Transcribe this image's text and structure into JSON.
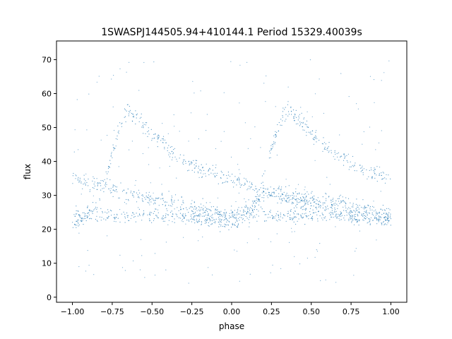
{
  "chart_data": {
    "type": "scatter",
    "title": "1SWASPJ144505.94+410144.1 Period 15329.40039s",
    "xlabel": "phase",
    "ylabel": "flux",
    "xlim": [
      -1.1,
      1.1
    ],
    "ylim": [
      -1.5,
      75.5
    ],
    "xticks": [
      -1.0,
      -0.75,
      -0.5,
      -0.25,
      0.0,
      0.25,
      0.5,
      0.75,
      1.0
    ],
    "xtick_labels": [
      "−1.00",
      "−0.75",
      "−0.50",
      "−0.25",
      "0.00",
      "0.25",
      "0.50",
      "0.75",
      "1.00"
    ],
    "yticks": [
      0,
      10,
      20,
      30,
      40,
      50,
      60,
      70
    ],
    "ytick_labels": [
      "0",
      "10",
      "20",
      "30",
      "40",
      "50",
      "60",
      "70"
    ],
    "grid": false,
    "legend": "none",
    "point_color": "#1f77b4",
    "series": [
      {
        "shape": "rising-branch",
        "x": [
          -1.0,
          -0.9,
          -0.85,
          -0.8,
          -0.75,
          -0.72,
          -0.68,
          -0.65,
          -0.62
        ],
        "y": [
          22,
          24,
          27,
          33,
          42,
          48,
          53,
          55,
          54
        ]
      },
      {
        "shape": "decline-after-peak",
        "x": [
          -0.62,
          -0.55,
          -0.5,
          -0.4,
          -0.3,
          -0.2,
          -0.1,
          0.0
        ],
        "y": [
          54,
          51,
          48,
          44,
          40,
          38,
          36,
          35
        ]
      },
      {
        "shape": "slow-decline",
        "x": [
          -1.0,
          -0.75,
          -0.5,
          -0.25,
          0.0,
          0.25,
          0.5,
          0.75,
          1.0
        ],
        "y": [
          35,
          32,
          29,
          27,
          24,
          31,
          29,
          27,
          24
        ]
      },
      {
        "shape": "flat-baseline",
        "x": [
          -1.0,
          -0.5,
          0.0,
          0.5,
          1.0
        ],
        "y": [
          24,
          24,
          24,
          24,
          24
        ]
      },
      {
        "shape": "dip-and-rise",
        "x": [
          -0.25,
          -0.1,
          0.0,
          0.05,
          0.1,
          0.15,
          0.2,
          0.25,
          0.3,
          0.35,
          0.38
        ],
        "y": [
          24,
          22,
          21,
          22,
          24,
          28,
          35,
          44,
          51,
          55,
          55
        ]
      },
      {
        "shape": "decline-to-end",
        "x": [
          0.38,
          0.45,
          0.5,
          0.6,
          0.7,
          0.8,
          0.9,
          1.0
        ],
        "y": [
          54,
          51,
          48,
          44,
          41,
          38,
          36,
          35
        ]
      },
      {
        "shape": "lower-trail",
        "x": [
          0.0,
          0.25,
          0.5,
          0.75,
          1.0
        ],
        "y": [
          35,
          30,
          27,
          24,
          22
        ]
      }
    ]
  }
}
